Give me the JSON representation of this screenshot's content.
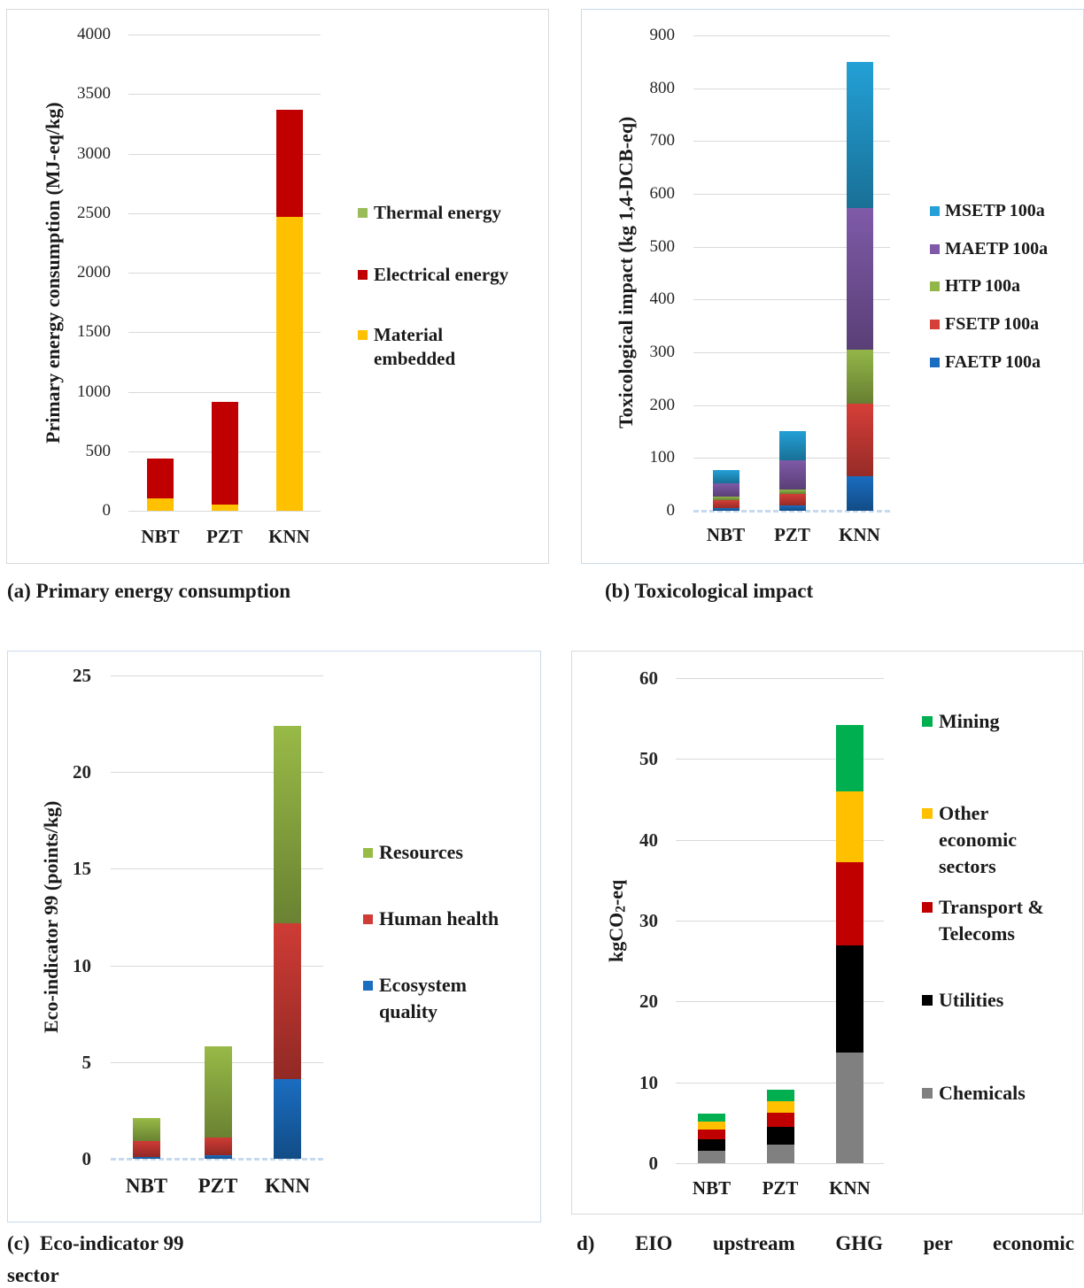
{
  "chart_data": [
    {
      "type": "bar",
      "stacked": true,
      "ylabel": "Primary energy consumption (MJ-eq/kg)",
      "categories": [
        "NBT",
        "PZT",
        "KNN"
      ],
      "ylim": [
        0,
        4000
      ],
      "yticks": [
        0,
        500,
        1000,
        1500,
        2000,
        2500,
        3000,
        3500,
        4000
      ],
      "grid": true,
      "legend_position": "right",
      "series": [
        {
          "name": "Material embedded",
          "color": "#ffc000",
          "values": [
            105,
            50,
            2470
          ]
        },
        {
          "name": "Electrical energy",
          "color": "#c00000",
          "values": [
            335,
            865,
            900
          ]
        },
        {
          "name": "Thermal energy",
          "color": "#9bbb59",
          "values": [
            0,
            0,
            0
          ]
        }
      ]
    },
    {
      "type": "bar",
      "stacked": true,
      "ylabel": "Toxicological impact (kg 1,4-DCB-eq)",
      "categories": [
        "NBT",
        "PZT",
        "KNN"
      ],
      "ylim": [
        0,
        900
      ],
      "yticks": [
        0,
        100,
        200,
        300,
        400,
        500,
        600,
        700,
        800,
        900
      ],
      "grid": true,
      "legend_position": "right",
      "series": [
        {
          "name": "FAETP 100a",
          "color": "#1a6dc0",
          "values": [
            5,
            10,
            65
          ]
        },
        {
          "name": "FSETP 100a",
          "color": "#d63e38",
          "values": [
            15,
            22,
            138
          ]
        },
        {
          "name": "HTP 100a",
          "color": "#93b648",
          "values": [
            7,
            8,
            102
          ]
        },
        {
          "name": "MAETP 100a",
          "color": "#7f5aa8",
          "values": [
            25,
            55,
            268
          ]
        },
        {
          "name": "MSETP 100a",
          "color": "#23a0d6",
          "values": [
            25,
            56,
            277
          ]
        }
      ]
    },
    {
      "type": "bar",
      "stacked": true,
      "ylabel": "Eco-indicator 99 (points/kg)",
      "categories": [
        "NBT",
        "PZT",
        "KNN"
      ],
      "ylim": [
        0,
        25
      ],
      "yticks": [
        0,
        5,
        10,
        15,
        20,
        25
      ],
      "grid": true,
      "legend_position": "right",
      "series": [
        {
          "name": "Ecosystem quality",
          "color": "#1a6dc0",
          "values": [
            0.1,
            0.2,
            4.1
          ]
        },
        {
          "name": "Human health",
          "color": "#cf3b35",
          "values": [
            0.8,
            0.9,
            8.1
          ]
        },
        {
          "name": "Resources",
          "color": "#98ba47",
          "values": [
            1.2,
            4.7,
            10.2
          ]
        }
      ]
    },
    {
      "type": "bar",
      "stacked": true,
      "ylabel": {
        "base": "kgCO",
        "subscript": "2",
        "suffix": "-eq"
      },
      "categories": [
        "NBT",
        "PZT",
        "KNN"
      ],
      "ylim": [
        0,
        60
      ],
      "yticks": [
        0,
        10,
        20,
        30,
        40,
        50,
        60
      ],
      "grid": true,
      "legend_position": "right",
      "series": [
        {
          "name": "Chemicals",
          "color": "#808080",
          "values": [
            1.5,
            2.3,
            13.7
          ]
        },
        {
          "name": "Utilities",
          "color": "#000000",
          "values": [
            1.5,
            2.2,
            13.2
          ]
        },
        {
          "name": "Transport & Telecoms",
          "color": "#c00000",
          "values": [
            1.2,
            1.7,
            10.3
          ]
        },
        {
          "name": "Other economic sectors",
          "color": "#ffc000",
          "values": [
            0.9,
            1.5,
            8.8
          ]
        },
        {
          "name": "Mining",
          "color": "#00b050",
          "values": [
            1.0,
            1.4,
            8.2
          ]
        }
      ]
    }
  ],
  "captions": {
    "a": "(a) Primary energy consumption",
    "b": "(b) Toxicological impact",
    "c": "(c)  Eco-indicator 99",
    "d": "d) EIO upstream GHG per economic",
    "d_wrap": "sector"
  }
}
